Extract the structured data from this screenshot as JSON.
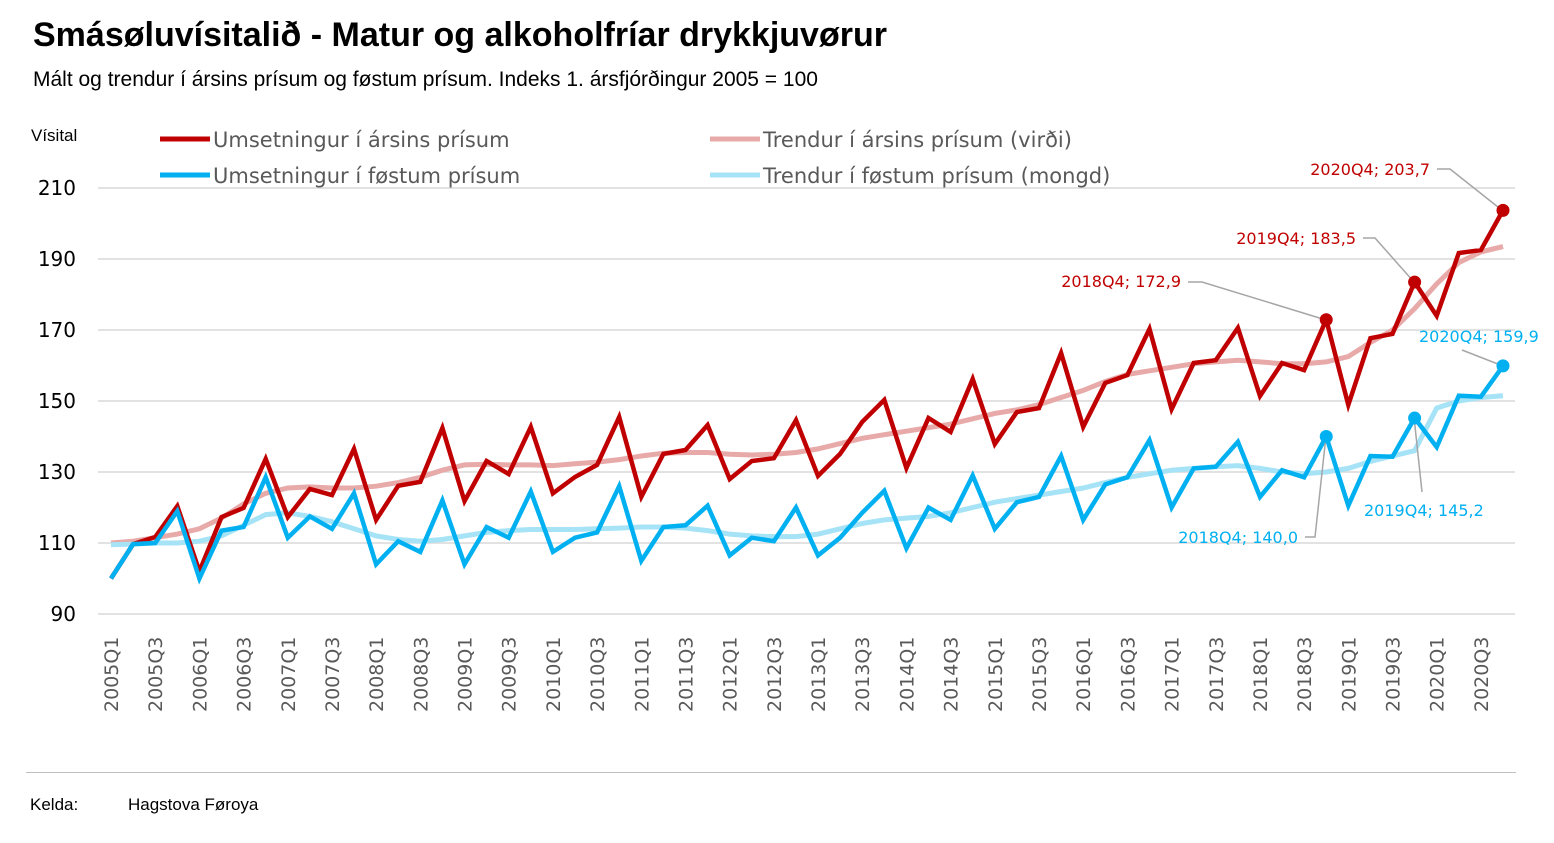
{
  "title": "Smásøluvísitalið - Matur og alkoholfríar drykkjuvørur",
  "subtitle": "Mált og trendur í ársins prísum og føstum prísum. Indeks 1. ársfjórðingur 2005 = 100",
  "footer": {
    "source_label": "Kelda:",
    "source_value": "Hagstova Føroya"
  },
  "chart_data": {
    "type": "line",
    "ylabel": "Vísital",
    "ylim": [
      90,
      210
    ],
    "yticks": [
      90,
      110,
      130,
      150,
      170,
      190,
      210
    ],
    "grid": true,
    "legend_placement": "top",
    "categories": [
      "2005Q1",
      "2005Q2",
      "2005Q3",
      "2005Q4",
      "2006Q1",
      "2006Q2",
      "2006Q3",
      "2006Q4",
      "2007Q1",
      "2007Q2",
      "2007Q3",
      "2007Q4",
      "2008Q1",
      "2008Q2",
      "2008Q3",
      "2008Q4",
      "2009Q1",
      "2009Q2",
      "2009Q3",
      "2009Q4",
      "2010Q1",
      "2010Q2",
      "2010Q3",
      "2010Q4",
      "2011Q1",
      "2011Q2",
      "2011Q3",
      "2011Q4",
      "2012Q1",
      "2012Q2",
      "2012Q3",
      "2012Q4",
      "2013Q1",
      "2013Q2",
      "2013Q3",
      "2013Q4",
      "2014Q1",
      "2014Q2",
      "2014Q3",
      "2014Q4",
      "2015Q1",
      "2015Q2",
      "2015Q3",
      "2015Q4",
      "2016Q1",
      "2016Q2",
      "2016Q3",
      "2016Q4",
      "2017Q1",
      "2017Q2",
      "2017Q3",
      "2017Q4",
      "2018Q1",
      "2018Q2",
      "2018Q3",
      "2018Q4",
      "2019Q1",
      "2019Q2",
      "2019Q3",
      "2019Q4",
      "2020Q1",
      "2020Q2",
      "2020Q3",
      "2020Q4"
    ],
    "series": [
      {
        "name": "Trendur í ársins prísum (virði)",
        "color": "#e8a9a9",
        "width": 5,
        "values": [
          110,
          110.5,
          111.5,
          112.5,
          114,
          117,
          121,
          124,
          125.5,
          125.8,
          125.5,
          125.5,
          126,
          127,
          128.5,
          130.5,
          132,
          132.2,
          132,
          132,
          131.8,
          132.3,
          132.8,
          133.5,
          134.5,
          135.3,
          135.5,
          135.5,
          135,
          134.8,
          135,
          135.5,
          136.5,
          138,
          139.5,
          140.5,
          141.5,
          142.5,
          143.5,
          145,
          146.5,
          147.5,
          149,
          151,
          153,
          155.5,
          157.5,
          158.5,
          159.5,
          160.5,
          161,
          161.5,
          161,
          160.5,
          160.5,
          161,
          162.5,
          166.5,
          170,
          176,
          183,
          189,
          192,
          193.5
        ]
      },
      {
        "name": "Trendur í føstum prísum (mongd)",
        "color": "#a6e3f7",
        "width": 5,
        "values": [
          109.5,
          109.7,
          110,
          110,
          110.5,
          112,
          115,
          118,
          118.5,
          117.5,
          116,
          114,
          112,
          111,
          110.5,
          111,
          112,
          113,
          113.5,
          113.8,
          113.8,
          113.8,
          114,
          114.2,
          114.5,
          114.5,
          114.2,
          113.5,
          112.5,
          112,
          111.8,
          111.8,
          112.5,
          114,
          115.5,
          116.5,
          117,
          117.5,
          118.5,
          120,
          121.5,
          122.5,
          123.5,
          124.5,
          125.5,
          127,
          128.5,
          129.5,
          130.5,
          131,
          131.5,
          131.8,
          131,
          130,
          129.5,
          130,
          131,
          133,
          134.5,
          136,
          148,
          150,
          151,
          151.5
        ]
      },
      {
        "name": "Umsetningur í ársins prísum",
        "color": "#c00000",
        "width": 4.5,
        "values": [
          100,
          109.7,
          111.7,
          120.4,
          102,
          117.3,
          119.9,
          133.7,
          117.3,
          125.2,
          123.5,
          136.5,
          116.5,
          126.1,
          127.2,
          142.4,
          121.8,
          133.1,
          129.4,
          142.7,
          124,
          128.6,
          132,
          145.5,
          123,
          135.1,
          136.2,
          143.2,
          128,
          133.1,
          133.9,
          144.6,
          128.9,
          135.1,
          144.1,
          150.3,
          131.1,
          145.2,
          141.3,
          156.2,
          137.9,
          146.9,
          148,
          163.5,
          142.7,
          155.1,
          157.3,
          170.3,
          147.7,
          160.7,
          161.5,
          170.6,
          151.4,
          160.7,
          158.7,
          172.9,
          148.9,
          167.7,
          168.9,
          183.5,
          174,
          191.7,
          192.5,
          203.7
        ]
      },
      {
        "name": "Umsetningur í føstum prísum",
        "color": "#00b0f0",
        "width": 4.5,
        "values": [
          100,
          109.7,
          110,
          119,
          100,
          113.5,
          114.5,
          128.5,
          111.5,
          117.5,
          114,
          124,
          104,
          110.5,
          107.5,
          122,
          104,
          114.5,
          111.5,
          124.5,
          107.5,
          111.5,
          113,
          126,
          105,
          114.5,
          115,
          120.5,
          106.5,
          111.5,
          110.5,
          120,
          106.5,
          111.5,
          118.5,
          124.7,
          108.5,
          120,
          116.5,
          129,
          114,
          121.5,
          123,
          134.5,
          116.5,
          126.5,
          128.5,
          139,
          120,
          131,
          131.5,
          138.5,
          123,
          130.5,
          128.5,
          140,
          120.5,
          134.5,
          134.3,
          145.2,
          137,
          151.5,
          151.2,
          159.9
        ]
      }
    ],
    "annotations": [
      {
        "series": 2,
        "category": "2018Q4",
        "text": "2018Q4; 172,9"
      },
      {
        "series": 2,
        "category": "2019Q4",
        "text": "2019Q4; 183,5"
      },
      {
        "series": 2,
        "category": "2020Q4",
        "text": "2020Q4; 203,7"
      },
      {
        "series": 3,
        "category": "2018Q4",
        "text": "2018Q4; 140,0"
      },
      {
        "series": 3,
        "category": "2019Q4",
        "text": "2019Q4; 145,2"
      },
      {
        "series": 3,
        "category": "2020Q4",
        "text": "2020Q4; 159,9"
      }
    ]
  }
}
